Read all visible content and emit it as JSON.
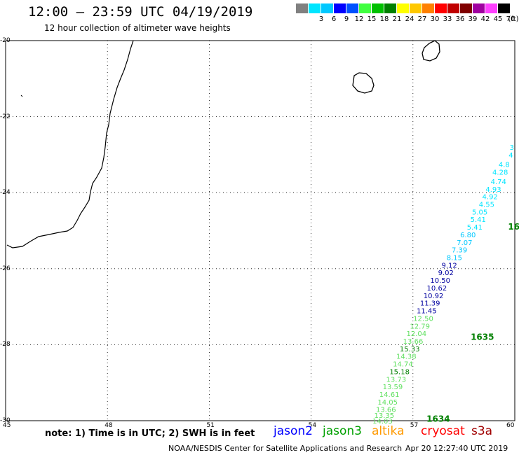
{
  "header": {
    "title": "12:00 – 23:59 UTC 04/19/2019",
    "subtitle": "12 hour collection of altimeter wave heights"
  },
  "color_scale": {
    "unit_label": "(ft)",
    "bins": [
      {
        "label": "",
        "color": "#808080"
      },
      {
        "label": "3",
        "color": "#00e5ff"
      },
      {
        "label": "6",
        "color": "#00c8ff"
      },
      {
        "label": "9",
        "color": "#0000ff"
      },
      {
        "label": "12",
        "color": "#0050ff"
      },
      {
        "label": "15",
        "color": "#40ff40"
      },
      {
        "label": "18",
        "color": "#00c000"
      },
      {
        "label": "21",
        "color": "#008000"
      },
      {
        "label": "24",
        "color": "#ffff00"
      },
      {
        "label": "27",
        "color": "#ffc800"
      },
      {
        "label": "30",
        "color": "#ff8000"
      },
      {
        "label": "33",
        "color": "#ff0000"
      },
      {
        "label": "36",
        "color": "#c00000"
      },
      {
        "label": "39",
        "color": "#800000"
      },
      {
        "label": "42",
        "color": "#a000a0"
      },
      {
        "label": "45",
        "color": "#ff40ff"
      },
      {
        "label": "70",
        "color": "#000000"
      }
    ]
  },
  "axes": {
    "x_ticks": [
      "45",
      "48",
      "51",
      "54",
      "57",
      "60"
    ],
    "y_ticks": [
      "-20",
      "-22",
      "-24",
      "-26",
      "-28",
      "-30"
    ],
    "lon_range": [
      45,
      60
    ],
    "lat_range": [
      -20,
      -30
    ]
  },
  "track": {
    "time_labels": [
      {
        "text": "1635",
        "lon": 58.7,
        "lat": -27.8,
        "color": "#008000"
      },
      {
        "text": "1634",
        "lon": 57.4,
        "lat": -29.95,
        "color": "#008000"
      },
      {
        "text": "16",
        "lon": 59.8,
        "lat": -24.9,
        "color": "#008000"
      }
    ],
    "points": [
      {
        "v": "3",
        "lon": 60.0,
        "lat": -22.8,
        "color": "#00e5ff"
      },
      {
        "v": "4",
        "lon": 59.95,
        "lat": -23.0,
        "color": "#00e5ff"
      },
      {
        "v": "4.8",
        "lon": 59.85,
        "lat": -23.25,
        "color": "#00e5ff"
      },
      {
        "v": "4.28",
        "lon": 59.8,
        "lat": -23.45,
        "color": "#00e5ff"
      },
      {
        "v": "4.74",
        "lon": 59.75,
        "lat": -23.7,
        "color": "#00e5ff"
      },
      {
        "v": "4.93",
        "lon": 59.6,
        "lat": -23.9,
        "color": "#00e5ff"
      },
      {
        "v": "4.92",
        "lon": 59.5,
        "lat": -24.1,
        "color": "#00e5ff"
      },
      {
        "v": "4.55",
        "lon": 59.4,
        "lat": -24.3,
        "color": "#00e5ff"
      },
      {
        "v": "5.05",
        "lon": 59.2,
        "lat": -24.5,
        "color": "#00e5ff"
      },
      {
        "v": "5.41",
        "lon": 59.15,
        "lat": -24.7,
        "color": "#00e5ff"
      },
      {
        "v": "5.41",
        "lon": 59.05,
        "lat": -24.9,
        "color": "#00e5ff"
      },
      {
        "v": "6.80",
        "lon": 58.85,
        "lat": -25.1,
        "color": "#00c8ff"
      },
      {
        "v": "7.07",
        "lon": 58.75,
        "lat": -25.3,
        "color": "#00c8ff"
      },
      {
        "v": "7.39",
        "lon": 58.6,
        "lat": -25.5,
        "color": "#00c8ff"
      },
      {
        "v": "8.15",
        "lon": 58.45,
        "lat": -25.7,
        "color": "#00c8ff"
      },
      {
        "v": "9.12",
        "lon": 58.3,
        "lat": -25.9,
        "color": "#0000a0"
      },
      {
        "v": "9.02",
        "lon": 58.2,
        "lat": -26.1,
        "color": "#0000a0"
      },
      {
        "v": "10.50",
        "lon": 58.1,
        "lat": -26.3,
        "color": "#0000a0"
      },
      {
        "v": "10.62",
        "lon": 58.0,
        "lat": -26.5,
        "color": "#0000a0"
      },
      {
        "v": "10.92",
        "lon": 57.9,
        "lat": -26.7,
        "color": "#0000a0"
      },
      {
        "v": "11.39",
        "lon": 57.8,
        "lat": -26.9,
        "color": "#0000a0"
      },
      {
        "v": "11.45",
        "lon": 57.7,
        "lat": -27.1,
        "color": "#0000a0"
      },
      {
        "v": "12.50",
        "lon": 57.6,
        "lat": -27.3,
        "color": "#60e060"
      },
      {
        "v": "12.79",
        "lon": 57.5,
        "lat": -27.5,
        "color": "#60e060"
      },
      {
        "v": "12.04",
        "lon": 57.4,
        "lat": -27.7,
        "color": "#60e060"
      },
      {
        "v": "13.66",
        "lon": 57.3,
        "lat": -27.9,
        "color": "#60e060"
      },
      {
        "v": "15.33",
        "lon": 57.2,
        "lat": -28.1,
        "color": "#008000"
      },
      {
        "v": "14.38",
        "lon": 57.1,
        "lat": -28.3,
        "color": "#60e060"
      },
      {
        "v": "14.74",
        "lon": 57.0,
        "lat": -28.5,
        "color": "#60e060"
      },
      {
        "v": "15.18",
        "lon": 56.9,
        "lat": -28.7,
        "color": "#008000"
      },
      {
        "v": "13.73",
        "lon": 56.8,
        "lat": -28.9,
        "color": "#60e060"
      },
      {
        "v": "13.59",
        "lon": 56.7,
        "lat": -29.1,
        "color": "#60e060"
      },
      {
        "v": "14.61",
        "lon": 56.6,
        "lat": -29.3,
        "color": "#60e060"
      },
      {
        "v": "14.05",
        "lon": 56.55,
        "lat": -29.5,
        "color": "#60e060"
      },
      {
        "v": "13.66",
        "lon": 56.5,
        "lat": -29.7,
        "color": "#60e060"
      },
      {
        "v": "13.35",
        "lon": 56.45,
        "lat": -29.85,
        "color": "#60e060"
      },
      {
        "v": "14.03",
        "lon": 56.4,
        "lat": -30.0,
        "color": "#60e060"
      }
    ]
  },
  "legend": {
    "note": "note: 1) Time is in UTC; 2) SWH is in feet",
    "satellites": [
      {
        "name": "jason2",
        "color": "#0000ff"
      },
      {
        "name": "jason3",
        "color": "#00a000"
      },
      {
        "name": "altika",
        "color": "#ff9900"
      },
      {
        "name": "cryosat",
        "color": "#ff0000"
      },
      {
        "name": "s3a",
        "color": "#a00000"
      }
    ]
  },
  "footer": {
    "credit": "NOAA/NESDIS Center for Satellite Applications and Research",
    "timestamp": "Apr 20 12:27:40 UTC 2019"
  }
}
